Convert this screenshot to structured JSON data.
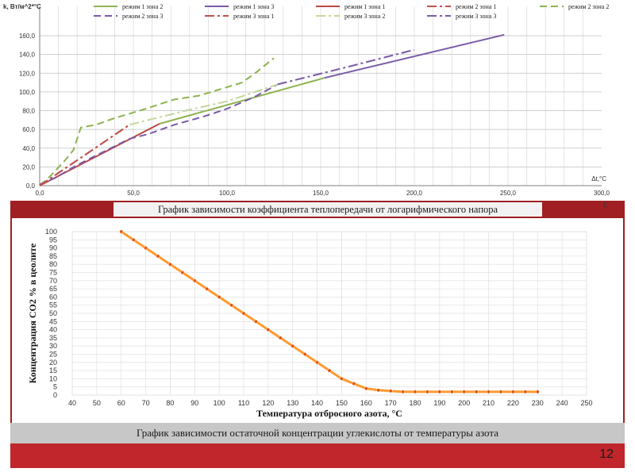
{
  "chart1": {
    "chart_data": {
      "type": "line",
      "ylabel": "k, Вт/м^2*°С",
      "xlabel": "Δt,°С",
      "xlim": [
        0,
        300
      ],
      "ylim": [
        0,
        160
      ],
      "x_ticks": [
        "0,0",
        "50,0",
        "100,0",
        "150,0",
        "200,0",
        "250,0",
        "300,0"
      ],
      "y_ticks": [
        "0,0",
        "20,0",
        "40,0",
        "60,0",
        "80,0",
        "100,0",
        "120,0",
        "140,0",
        "160,0"
      ],
      "legend_position": "top",
      "series": [
        {
          "name": "режим 1 зона 2",
          "color": "#8db350",
          "dash": "solid",
          "points": [
            [
              64,
              66
            ],
            [
              152,
              115
            ]
          ]
        },
        {
          "name": "режим 1 зона 3",
          "color": "#7a5aa8",
          "dash": "solid",
          "points": [
            [
              152,
              115
            ],
            [
              248,
              161
            ]
          ]
        },
        {
          "name": "режим 1 зона 1",
          "color": "#b94a47",
          "dash": "solid",
          "points": [
            [
              0,
              0
            ],
            [
              64,
              66
            ]
          ]
        },
        {
          "name": "режим 2 зона 1",
          "color": "#c0504d",
          "dash": "dashdot",
          "points": [
            [
              0,
              0
            ],
            [
              48,
              65
            ]
          ]
        },
        {
          "name": "режим 2 зона 2",
          "color": "#8db350",
          "dash": "dash",
          "points": [
            [
              0,
              1
            ],
            [
              3,
              5
            ],
            [
              8,
              15
            ],
            [
              14,
              28
            ],
            [
              18,
              38
            ],
            [
              22,
              62
            ],
            [
              30,
              65
            ],
            [
              40,
              72
            ],
            [
              55,
              81
            ],
            [
              72,
              92
            ],
            [
              85,
              96
            ],
            [
              95,
              102
            ],
            [
              108,
              110
            ],
            [
              115,
              120
            ],
            [
              120,
              128
            ],
            [
              125,
              136
            ]
          ]
        },
        {
          "name": "режим 2 зона 3",
          "color": "#7a5aa8",
          "dash": "dash",
          "points": [
            [
              0,
              1
            ],
            [
              8,
              8
            ],
            [
              14,
              15
            ],
            [
              20,
              22
            ],
            [
              48,
              50
            ],
            [
              58,
              55
            ],
            [
              72,
              65
            ],
            [
              88,
              74
            ],
            [
              100,
              82
            ],
            [
              115,
              95
            ],
            [
              127,
              108
            ]
          ]
        },
        {
          "name": "режим 3 зона 1",
          "color": "#c0504d",
          "dash": "dashdot",
          "points": [
            [
              0,
              0
            ],
            [
              48,
              65
            ]
          ]
        },
        {
          "name": "режим 3 зона 2",
          "color": "#c3d69b",
          "dash": "dashdot",
          "points": [
            [
              48,
              65
            ],
            [
              78,
              80
            ],
            [
              100,
              90
            ],
            [
              127,
              108
            ]
          ]
        },
        {
          "name": "режим 3 зона 3",
          "color": "#7a5aa8",
          "dash": "dashdot",
          "points": [
            [
              127,
              108
            ],
            [
              165,
              127
            ],
            [
              200,
              145
            ]
          ]
        }
      ]
    },
    "caption": "График зависимости коэффициента теплопередачи от логарифмического напора",
    "stray_char": "с"
  },
  "chart2": {
    "chart_data": {
      "type": "line",
      "xlabel": "Температура отбросного азота, °С",
      "ylabel": "Концентрация CO2 % в цеолите",
      "xlim": [
        40,
        250
      ],
      "ylim": [
        0,
        100
      ],
      "x_ticks": [
        "40",
        "50",
        "60",
        "70",
        "80",
        "90",
        "100",
        "110",
        "120",
        "130",
        "140",
        "150",
        "160",
        "170",
        "180",
        "190",
        "200",
        "210",
        "220",
        "230",
        "240",
        "250"
      ],
      "y_ticks": [
        "0",
        "5",
        "10",
        "15",
        "20",
        "25",
        "30",
        "35",
        "40",
        "45",
        "50",
        "55",
        "60",
        "65",
        "70",
        "75",
        "80",
        "85",
        "90",
        "95",
        "100"
      ],
      "series": [
        {
          "color": "#ff9a2e",
          "marker_color": "#e8540c",
          "x": [
            60,
            65,
            70,
            75,
            80,
            85,
            90,
            95,
            100,
            105,
            110,
            115,
            120,
            125,
            130,
            135,
            140,
            145,
            150,
            155,
            160,
            165,
            170,
            175,
            180,
            185,
            190,
            195,
            200,
            205,
            210,
            215,
            220,
            225,
            230
          ],
          "y": [
            100,
            95,
            90,
            85,
            80,
            75,
            70,
            65,
            60,
            55,
            50,
            45,
            40,
            35,
            30,
            25,
            20,
            15,
            10,
            7,
            4,
            3,
            2.5,
            2,
            2,
            2,
            2,
            2,
            2,
            2,
            2,
            2,
            2,
            2,
            2
          ]
        }
      ]
    },
    "caption": "График зависимости остаточной концентрации углекислоты от температуры азота"
  },
  "footer": {
    "page_number": "12",
    "color": "#c0262b"
  }
}
